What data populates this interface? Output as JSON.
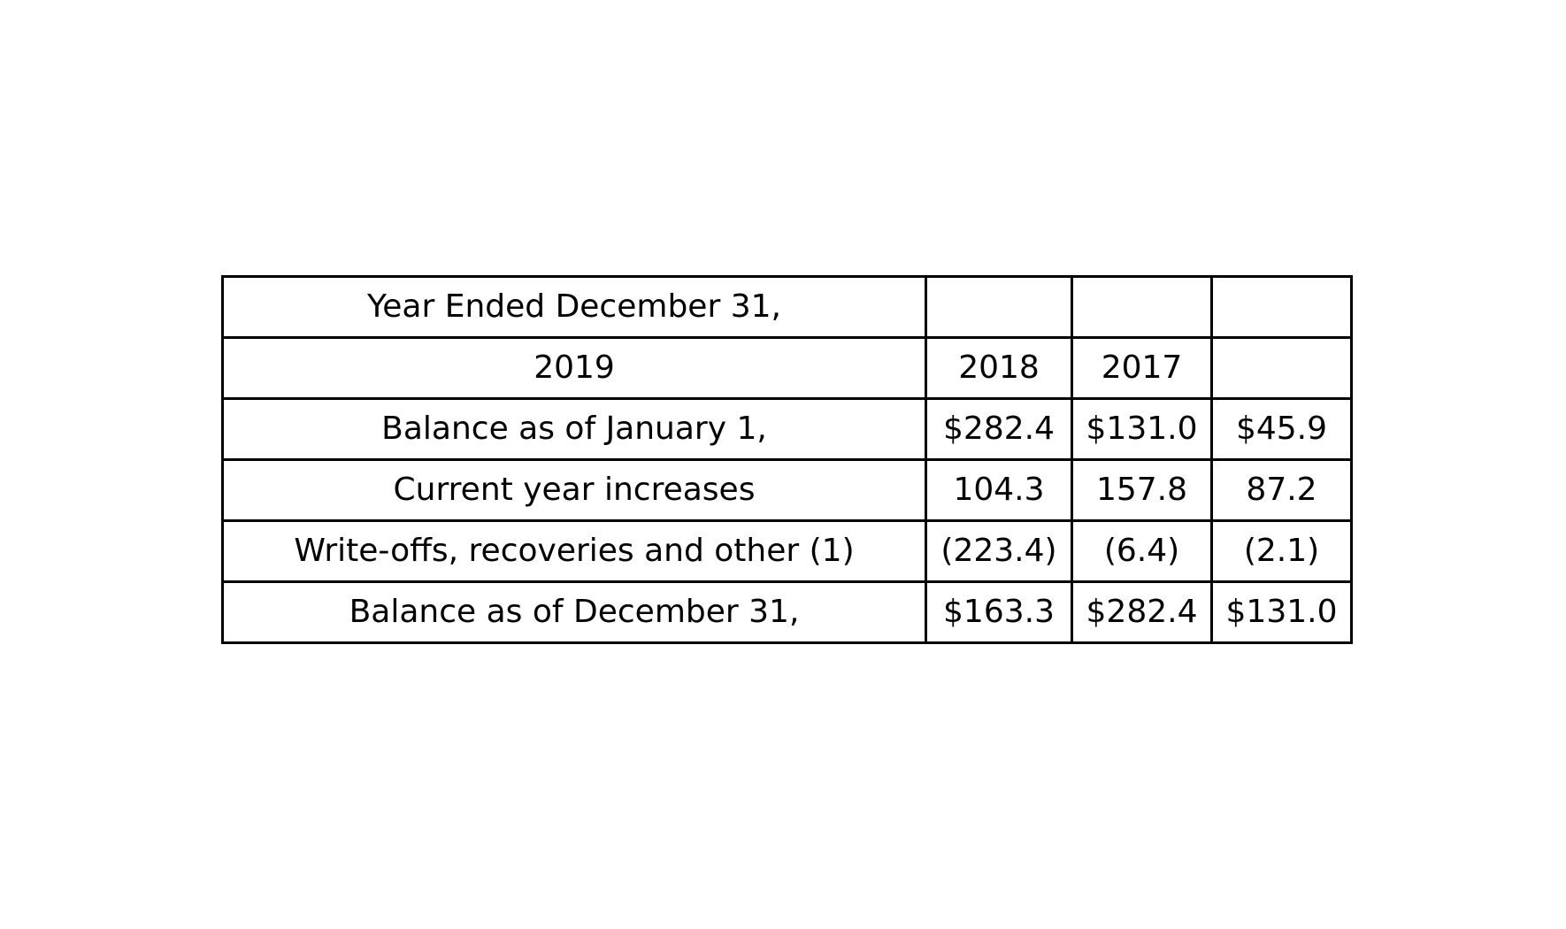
{
  "table": {
    "rows": [
      [
        "Year Ended December 31,",
        "",
        "",
        ""
      ],
      [
        "2019",
        "2018",
        "2017",
        ""
      ],
      [
        "Balance as of January 1,",
        "$282.4",
        "$131.0",
        "$45.9"
      ],
      [
        "Current year increases",
        "104.3",
        "157.8",
        "87.2"
      ],
      [
        "Write-offs, recoveries and other (1)",
        "(223.4)",
        "(6.4)",
        "(2.1)"
      ],
      [
        "Balance as of December 31,",
        "$163.3",
        "$282.4",
        "$131.0"
      ]
    ]
  }
}
